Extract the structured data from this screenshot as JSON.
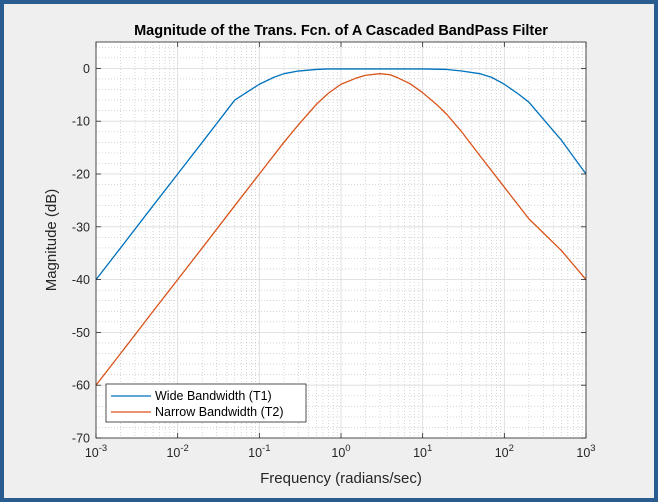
{
  "chart_data": {
    "type": "line",
    "title": "Magnitude of the Trans. Fcn. of A Cascaded BandPass Filter",
    "xlabel": "Frequency (radians/sec)",
    "ylabel": "Magnitude (dB)",
    "xscale": "log",
    "xlim": [
      0.001,
      1000
    ],
    "ylim": [
      -70,
      5
    ],
    "xticks": [
      0.001,
      0.01,
      0.1,
      1,
      10,
      100,
      1000
    ],
    "xtick_base": "10",
    "xtick_exponents": [
      "-3",
      "-2",
      "-1",
      "0",
      "1",
      "2",
      "3"
    ],
    "yticks": [
      0,
      -10,
      -20,
      -30,
      -40,
      -50,
      -60,
      -70
    ],
    "ytick_labels": [
      "0",
      "-10",
      "-20",
      "-30",
      "-40",
      "-50",
      "-60",
      "-70"
    ],
    "grid": true,
    "minor_grid": true,
    "legend_position": "bottom-left",
    "series": [
      {
        "name": "Wide Bandwidth (T1)",
        "color": "#0072BD",
        "x": [
          0.001,
          0.002,
          0.005,
          0.01,
          0.02,
          0.05,
          0.1,
          0.15,
          0.2,
          0.3,
          0.5,
          0.7,
          1,
          2,
          3,
          5,
          10,
          20,
          30,
          50,
          70,
          100,
          150,
          200,
          300,
          500,
          1000
        ],
        "y": [
          -40,
          -34,
          -26,
          -20,
          -14,
          -6,
          -3,
          -1.7,
          -1.0,
          -0.5,
          -0.2,
          -0.1,
          -0.1,
          -0.1,
          -0.1,
          -0.1,
          -0.1,
          -0.2,
          -0.5,
          -1.0,
          -1.7,
          -3,
          -4.9,
          -6.4,
          -9.6,
          -13.6,
          -20
        ]
      },
      {
        "name": "Narrow Bandwidth (T2)",
        "color": "#D95319",
        "x": [
          0.001,
          0.002,
          0.005,
          0.01,
          0.02,
          0.05,
          0.1,
          0.2,
          0.3,
          0.5,
          0.7,
          1,
          1.5,
          2,
          3,
          4,
          5,
          7,
          10,
          15,
          20,
          30,
          50,
          100,
          200,
          500,
          1000
        ],
        "y": [
          -60,
          -54,
          -46,
          -40,
          -34,
          -26,
          -20,
          -14,
          -10.7,
          -6.8,
          -4.7,
          -3,
          -1.9,
          -1.3,
          -1,
          -1.2,
          -1.8,
          -2.9,
          -4.6,
          -6.9,
          -8.8,
          -12,
          -16.5,
          -22.5,
          -28.5,
          -34.5,
          -40
        ]
      }
    ]
  }
}
